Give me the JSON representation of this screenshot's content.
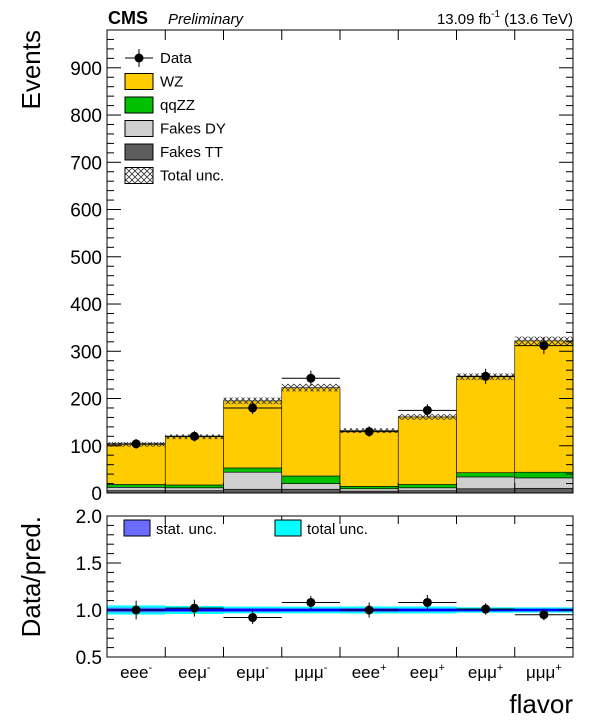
{
  "header": {
    "experiment": "CMS",
    "status": "Preliminary",
    "lumi_value": "13.09 fb",
    "lumi_exp": "-1",
    "energy": "(13.6 TeV)"
  },
  "chart_data": [
    {
      "type": "bar",
      "stacked": true,
      "title": "",
      "ylabel": "Events",
      "ylim": [
        0,
        980
      ],
      "yticks": [
        0,
        100,
        200,
        300,
        400,
        500,
        600,
        700,
        800,
        900
      ],
      "categories": [
        {
          "base": "eee",
          "sup": "-"
        },
        {
          "base": "eeμ",
          "sup": "-"
        },
        {
          "base": "eμμ",
          "sup": "-"
        },
        {
          "base": "μμμ",
          "sup": "-"
        },
        {
          "base": "eee",
          "sup": "+"
        },
        {
          "base": "eeμ",
          "sup": "+"
        },
        {
          "base": "eμμ",
          "sup": "+"
        },
        {
          "base": "μμμ",
          "sup": "+"
        }
      ],
      "series": [
        {
          "name": "Fakes TT",
          "color": "#5e5e5e",
          "values": [
            5,
            5,
            8,
            8,
            4,
            5,
            9,
            10
          ]
        },
        {
          "name": "Fakes DY",
          "color": "#cfcfcf",
          "values": [
            7,
            6,
            36,
            12,
            5,
            6,
            25,
            22
          ]
        },
        {
          "name": "qqZZ",
          "color": "#00c000",
          "values": [
            6,
            6,
            9,
            16,
            5,
            7,
            9,
            12
          ]
        },
        {
          "name": "WZ",
          "color": "#ffcc00",
          "values": [
            85,
            102,
            142,
            187,
            118,
            143,
            203,
            278
          ]
        }
      ],
      "total_unc": [
        5,
        5,
        7,
        8,
        5,
        6,
        7,
        9
      ],
      "data": {
        "name": "Data",
        "values": [
          104,
          120,
          180,
          243,
          130,
          175,
          247,
          312
        ],
        "errors": [
          10,
          11,
          13,
          16,
          11,
          13,
          16,
          18
        ]
      },
      "legend": {
        "placement": "top-left",
        "entries": [
          "Data",
          "WZ",
          "qqZZ",
          "Fakes DY",
          "Fakes TT",
          "Total unc."
        ]
      }
    },
    {
      "type": "scatter",
      "title": "",
      "ylabel": "Data/pred.",
      "xlabel": "flavor",
      "ylim": [
        0.5,
        2.0
      ],
      "yticks": [
        "0.5",
        "1.0",
        "1.5",
        "2.0"
      ],
      "ratio_values": [
        1.0,
        1.02,
        0.92,
        1.08,
        1.0,
        1.08,
        1.01,
        0.95
      ],
      "ratio_errors": [
        0.1,
        0.09,
        0.07,
        0.07,
        0.08,
        0.08,
        0.06,
        0.06
      ],
      "stat_unc": [
        0.05,
        0.04,
        0.04,
        0.035,
        0.04,
        0.035,
        0.03,
        0.03
      ],
      "stat_color": "#6b6bff",
      "total_color": "#00ffff",
      "line_color": "#0000ff",
      "legend": {
        "placement": "top",
        "entries": [
          "stat. unc.",
          "total unc."
        ]
      }
    }
  ]
}
